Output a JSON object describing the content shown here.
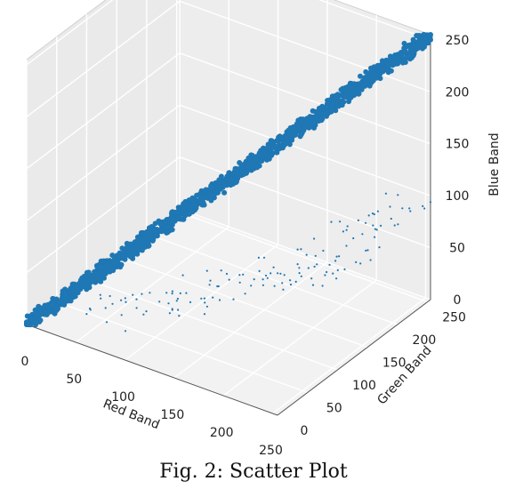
{
  "chart_data": {
    "type": "scatter",
    "projection": "3d",
    "xlabel": "Red Band",
    "ylabel": "Green Band",
    "zlabel": "Blue Band",
    "xlim": [
      0,
      255
    ],
    "ylim": [
      0,
      255
    ],
    "zlim": [
      0,
      255
    ],
    "x_ticks": [
      0,
      50,
      100,
      150,
      200,
      250
    ],
    "y_ticks": [
      0,
      50,
      100,
      150,
      200,
      250
    ],
    "z_ticks": [
      0,
      50,
      100,
      150,
      200,
      250
    ],
    "grid": true,
    "marker_color": "#1f77b4",
    "series": [
      {
        "x": [
          0,
          25,
          50,
          75,
          100,
          125,
          150,
          175,
          200,
          225,
          255
        ],
        "y": [
          0,
          25,
          50,
          75,
          100,
          125,
          150,
          175,
          200,
          225,
          255
        ],
        "z": [
          0,
          25,
          50,
          75,
          100,
          125,
          150,
          175,
          200,
          225,
          255
        ]
      },
      {
        "x": [
          40,
          80,
          120,
          160,
          200,
          240
        ],
        "y": [
          60,
          110,
          170,
          210,
          230,
          250
        ],
        "z": [
          0,
          5,
          10,
          20,
          60,
          110
        ]
      }
    ]
  },
  "caption": "Fig. 2: Scatter Plot"
}
